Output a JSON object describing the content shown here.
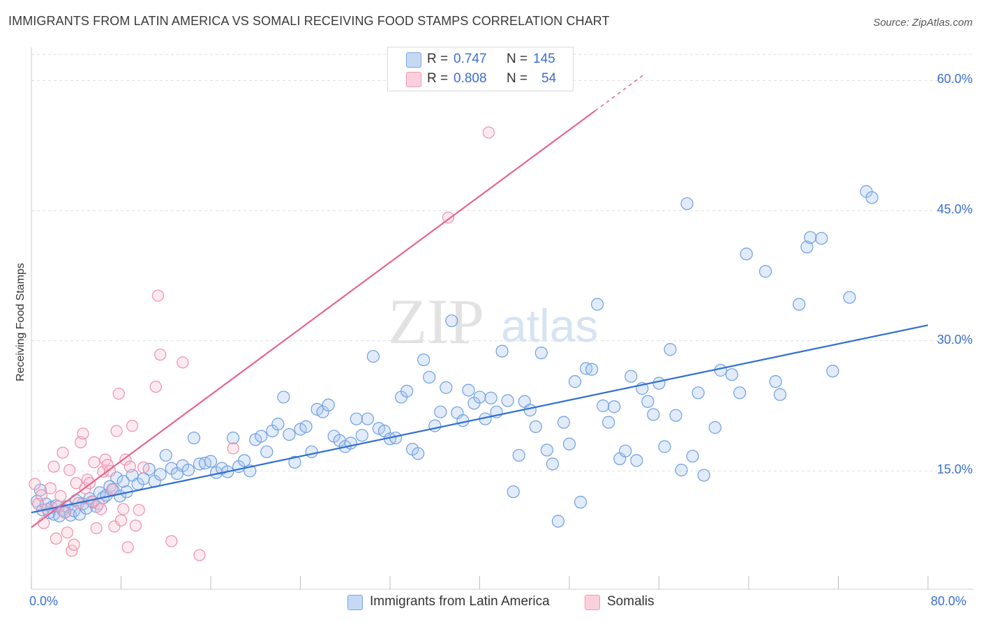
{
  "title": "IMMIGRANTS FROM LATIN AMERICA VS SOMALI RECEIVING FOOD STAMPS CORRELATION CHART",
  "source": "Source: ZipAtlas.com",
  "watermark": {
    "zip": "ZIP",
    "atlas": "atlas"
  },
  "legend": {
    "rows": [
      {
        "r_label": "R =",
        "r_value": "0.747",
        "n_label": "N =",
        "n_value": "145",
        "color": "#a9c6ef"
      },
      {
        "r_label": "R =",
        "r_value": "0.808",
        "n_label": "N =",
        "n_value": "54",
        "color": "#f5b6c8"
      }
    ]
  },
  "chart_data": {
    "type": "scatter",
    "title": "IMMIGRANTS FROM LATIN AMERICA VS SOMALI RECEIVING FOOD STAMPS CORRELATION CHART",
    "xlabel": "",
    "ylabel": "Receiving Food Stamps",
    "xlim": [
      0,
      80
    ],
    "ylim": [
      0,
      63
    ],
    "x_tick_labels": [
      "0.0%",
      "80.0%"
    ],
    "y_ticks": [
      15,
      30,
      45,
      60
    ],
    "y_tick_labels": [
      "15.0%",
      "30.0%",
      "45.0%",
      "60.0%"
    ],
    "grid": true,
    "legend_position": "bottom",
    "series": [
      {
        "name": "Immigrants from Latin America",
        "color": "#6e9fe0",
        "line_color": "#2f6fcf",
        "trend": {
          "x": [
            0,
            80
          ],
          "y": [
            10.2,
            31.8
          ]
        },
        "points": [
          [
            0.5,
            11.5
          ],
          [
            0.8,
            12.8
          ],
          [
            1,
            10.5
          ],
          [
            1.3,
            11.2
          ],
          [
            1.6,
            10.2
          ],
          [
            1.8,
            10.8
          ],
          [
            2,
            10.0
          ],
          [
            2.2,
            11.0
          ],
          [
            2.5,
            9.8
          ],
          [
            2.8,
            10.5
          ],
          [
            3,
            10.3
          ],
          [
            3.2,
            10.9
          ],
          [
            3.5,
            9.9
          ],
          [
            3.8,
            10.4
          ],
          [
            4,
            11.6
          ],
          [
            4.3,
            10.0
          ],
          [
            4.6,
            11.2
          ],
          [
            4.9,
            10.7
          ],
          [
            5.2,
            11.8
          ],
          [
            5.5,
            11.4
          ],
          [
            5.8,
            10.9
          ],
          [
            6.1,
            12.5
          ],
          [
            6.4,
            11.9
          ],
          [
            6.7,
            12.2
          ],
          [
            7,
            13.2
          ],
          [
            7.3,
            12.8
          ],
          [
            7.6,
            14.2
          ],
          [
            7.9,
            12.1
          ],
          [
            8.2,
            13.8
          ],
          [
            8.5,
            12.6
          ],
          [
            9,
            14.5
          ],
          [
            9.5,
            13.5
          ],
          [
            10,
            14.1
          ],
          [
            10.5,
            15.2
          ],
          [
            11,
            13.8
          ],
          [
            11.5,
            14.6
          ],
          [
            12,
            16.8
          ],
          [
            12.5,
            15.3
          ],
          [
            13,
            14.7
          ],
          [
            13.5,
            15.6
          ],
          [
            14,
            15.1
          ],
          [
            14.5,
            18.8
          ],
          [
            15,
            15.8
          ],
          [
            15.5,
            15.9
          ],
          [
            16,
            16.1
          ],
          [
            16.5,
            14.8
          ],
          [
            17,
            15.3
          ],
          [
            17.5,
            14.9
          ],
          [
            18,
            18.8
          ],
          [
            18.5,
            15.5
          ],
          [
            19,
            16.2
          ],
          [
            19.5,
            15.0
          ],
          [
            20,
            18.6
          ],
          [
            20.5,
            19.0
          ],
          [
            21,
            17.2
          ],
          [
            21.5,
            19.6
          ],
          [
            22,
            20.4
          ],
          [
            22.5,
            23.5
          ],
          [
            23,
            19.2
          ],
          [
            23.5,
            16.0
          ],
          [
            24,
            19.8
          ],
          [
            24.5,
            20.1
          ],
          [
            25,
            17.2
          ],
          [
            25.5,
            22.1
          ],
          [
            26,
            21.8
          ],
          [
            26.5,
            22.6
          ],
          [
            27,
            19.0
          ],
          [
            27.5,
            18.5
          ],
          [
            28,
            17.8
          ],
          [
            28.5,
            18.2
          ],
          [
            29,
            21.0
          ],
          [
            29.5,
            19.1
          ],
          [
            30,
            21.0
          ],
          [
            30.5,
            28.2
          ],
          [
            31,
            19.9
          ],
          [
            31.5,
            19.6
          ],
          [
            32,
            18.7
          ],
          [
            32.5,
            18.8
          ],
          [
            33,
            23.5
          ],
          [
            33.5,
            24.2
          ],
          [
            34,
            17.5
          ],
          [
            34.5,
            17.0
          ],
          [
            35,
            27.8
          ],
          [
            35.5,
            25.8
          ],
          [
            36,
            20.2
          ],
          [
            36.5,
            21.8
          ],
          [
            37,
            24.6
          ],
          [
            37.5,
            32.3
          ],
          [
            38,
            21.7
          ],
          [
            38.5,
            20.8
          ],
          [
            39,
            24.3
          ],
          [
            39.5,
            22.8
          ],
          [
            40,
            23.5
          ],
          [
            40.5,
            21.0
          ],
          [
            41,
            23.4
          ],
          [
            41.5,
            21.8
          ],
          [
            42,
            28.8
          ],
          [
            42.5,
            23.1
          ],
          [
            43,
            12.6
          ],
          [
            43.5,
            16.8
          ],
          [
            44,
            23.0
          ],
          [
            44.5,
            22.0
          ],
          [
            45,
            20.1
          ],
          [
            45.5,
            28.6
          ],
          [
            46,
            17.4
          ],
          [
            46.5,
            15.8
          ],
          [
            47,
            9.2
          ],
          [
            47.5,
            20.6
          ],
          [
            48,
            18.1
          ],
          [
            48.5,
            25.3
          ],
          [
            49,
            11.4
          ],
          [
            49.5,
            26.8
          ],
          [
            50,
            26.7
          ],
          [
            50.5,
            34.2
          ],
          [
            51,
            22.5
          ],
          [
            51.5,
            20.6
          ],
          [
            52,
            22.4
          ],
          [
            52.5,
            16.4
          ],
          [
            53,
            17.3
          ],
          [
            53.5,
            25.9
          ],
          [
            54,
            16.2
          ],
          [
            54.5,
            24.5
          ],
          [
            55,
            23.0
          ],
          [
            55.5,
            21.5
          ],
          [
            56,
            25.1
          ],
          [
            56.5,
            17.8
          ],
          [
            57,
            29.0
          ],
          [
            57.5,
            21.4
          ],
          [
            58,
            15.1
          ],
          [
            58.5,
            45.8
          ],
          [
            59,
            16.7
          ],
          [
            59.5,
            24.0
          ],
          [
            60,
            14.5
          ],
          [
            61,
            20.0
          ],
          [
            61.5,
            26.6
          ],
          [
            62.5,
            26.1
          ],
          [
            63.2,
            24.0
          ],
          [
            63.8,
            40.0
          ],
          [
            65.5,
            38.0
          ],
          [
            66.4,
            25.3
          ],
          [
            66.8,
            23.8
          ],
          [
            68.5,
            34.2
          ],
          [
            69.2,
            40.8
          ],
          [
            69.5,
            41.9
          ],
          [
            70.5,
            41.8
          ],
          [
            71.5,
            26.5
          ],
          [
            73,
            35.0
          ],
          [
            74.5,
            47.2
          ],
          [
            75,
            46.5
          ]
        ]
      },
      {
        "name": "Somalis",
        "color": "#f29ab4",
        "line_color": "#e5658f",
        "trend": {
          "x": [
            0,
            50.3
          ],
          "y": [
            8.5,
            56.5
          ]
        },
        "trend_dashed": {
          "x": [
            50.3,
            54.8
          ],
          "y": [
            56.5,
            60.8
          ]
        },
        "points": [
          [
            0.3,
            13.5
          ],
          [
            0.6,
            11.2
          ],
          [
            0.9,
            12.2
          ],
          [
            1.1,
            9.0
          ],
          [
            1.4,
            10.6
          ],
          [
            1.7,
            13.0
          ],
          [
            2,
            15.5
          ],
          [
            2.2,
            7.2
          ],
          [
            2.4,
            10.9
          ],
          [
            2.6,
            12.1
          ],
          [
            2.8,
            17.1
          ],
          [
            3,
            10.2
          ],
          [
            3.2,
            7.9
          ],
          [
            3.4,
            15.1
          ],
          [
            3.6,
            5.8
          ],
          [
            3.8,
            6.5
          ],
          [
            4,
            13.6
          ],
          [
            4.2,
            11.3
          ],
          [
            4.4,
            18.3
          ],
          [
            4.6,
            19.3
          ],
          [
            4.8,
            13.0
          ],
          [
            5,
            14.0
          ],
          [
            5.2,
            13.6
          ],
          [
            5.4,
            11.5
          ],
          [
            5.6,
            16.0
          ],
          [
            5.8,
            8.4
          ],
          [
            6,
            11.2
          ],
          [
            6.2,
            10.6
          ],
          [
            6.4,
            14.9
          ],
          [
            6.6,
            16.3
          ],
          [
            6.8,
            15.7
          ],
          [
            7,
            15.0
          ],
          [
            7.2,
            12.9
          ],
          [
            7.4,
            8.6
          ],
          [
            7.6,
            19.6
          ],
          [
            7.8,
            23.9
          ],
          [
            8,
            9.3
          ],
          [
            8.2,
            10.6
          ],
          [
            8.4,
            16.3
          ],
          [
            8.6,
            6.2
          ],
          [
            8.8,
            15.5
          ],
          [
            9,
            20.2
          ],
          [
            9.3,
            8.7
          ],
          [
            9.6,
            10.5
          ],
          [
            10,
            15.4
          ],
          [
            11.1,
            24.7
          ],
          [
            11.3,
            35.2
          ],
          [
            11.5,
            28.4
          ],
          [
            12.5,
            6.9
          ],
          [
            13.5,
            27.5
          ],
          [
            15,
            5.3
          ],
          [
            18,
            17.6
          ],
          [
            37.2,
            44.2
          ],
          [
            40.8,
            54.0
          ]
        ]
      }
    ]
  }
}
